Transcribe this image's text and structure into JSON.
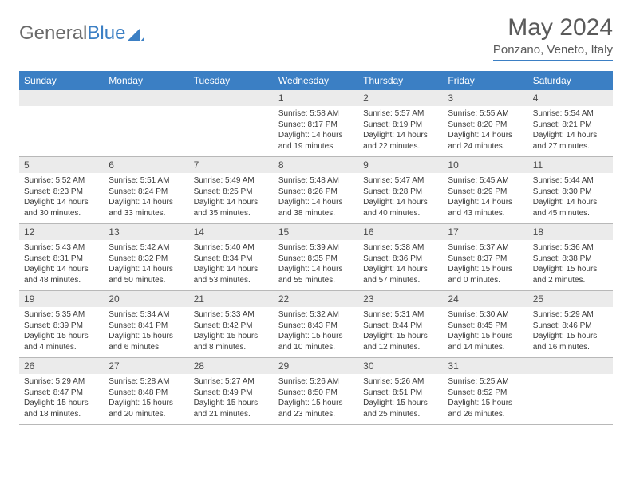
{
  "logo": {
    "text1": "General",
    "text2": "Blue"
  },
  "title": "May 2024",
  "location": "Ponzano, Veneto, Italy",
  "colors": {
    "accent": "#3b7fc4",
    "header_bg": "#3b7fc4",
    "header_text": "#ffffff",
    "daynum_bg": "#ebebeb",
    "text": "#3a3a3a",
    "title_text": "#5a5a5a",
    "border": "#b8b8b8"
  },
  "layout": {
    "columns": 7,
    "rows": 5,
    "cell_font_size": 10,
    "header_font_size": 12,
    "title_font_size": 30
  },
  "day_names": [
    "Sunday",
    "Monday",
    "Tuesday",
    "Wednesday",
    "Thursday",
    "Friday",
    "Saturday"
  ],
  "weeks": [
    [
      null,
      null,
      null,
      {
        "n": "1",
        "sr": "5:58 AM",
        "ss": "8:17 PM",
        "dl": "14 hours and 19 minutes."
      },
      {
        "n": "2",
        "sr": "5:57 AM",
        "ss": "8:19 PM",
        "dl": "14 hours and 22 minutes."
      },
      {
        "n": "3",
        "sr": "5:55 AM",
        "ss": "8:20 PM",
        "dl": "14 hours and 24 minutes."
      },
      {
        "n": "4",
        "sr": "5:54 AM",
        "ss": "8:21 PM",
        "dl": "14 hours and 27 minutes."
      }
    ],
    [
      {
        "n": "5",
        "sr": "5:52 AM",
        "ss": "8:23 PM",
        "dl": "14 hours and 30 minutes."
      },
      {
        "n": "6",
        "sr": "5:51 AM",
        "ss": "8:24 PM",
        "dl": "14 hours and 33 minutes."
      },
      {
        "n": "7",
        "sr": "5:49 AM",
        "ss": "8:25 PM",
        "dl": "14 hours and 35 minutes."
      },
      {
        "n": "8",
        "sr": "5:48 AM",
        "ss": "8:26 PM",
        "dl": "14 hours and 38 minutes."
      },
      {
        "n": "9",
        "sr": "5:47 AM",
        "ss": "8:28 PM",
        "dl": "14 hours and 40 minutes."
      },
      {
        "n": "10",
        "sr": "5:45 AM",
        "ss": "8:29 PM",
        "dl": "14 hours and 43 minutes."
      },
      {
        "n": "11",
        "sr": "5:44 AM",
        "ss": "8:30 PM",
        "dl": "14 hours and 45 minutes."
      }
    ],
    [
      {
        "n": "12",
        "sr": "5:43 AM",
        "ss": "8:31 PM",
        "dl": "14 hours and 48 minutes."
      },
      {
        "n": "13",
        "sr": "5:42 AM",
        "ss": "8:32 PM",
        "dl": "14 hours and 50 minutes."
      },
      {
        "n": "14",
        "sr": "5:40 AM",
        "ss": "8:34 PM",
        "dl": "14 hours and 53 minutes."
      },
      {
        "n": "15",
        "sr": "5:39 AM",
        "ss": "8:35 PM",
        "dl": "14 hours and 55 minutes."
      },
      {
        "n": "16",
        "sr": "5:38 AM",
        "ss": "8:36 PM",
        "dl": "14 hours and 57 minutes."
      },
      {
        "n": "17",
        "sr": "5:37 AM",
        "ss": "8:37 PM",
        "dl": "15 hours and 0 minutes."
      },
      {
        "n": "18",
        "sr": "5:36 AM",
        "ss": "8:38 PM",
        "dl": "15 hours and 2 minutes."
      }
    ],
    [
      {
        "n": "19",
        "sr": "5:35 AM",
        "ss": "8:39 PM",
        "dl": "15 hours and 4 minutes."
      },
      {
        "n": "20",
        "sr": "5:34 AM",
        "ss": "8:41 PM",
        "dl": "15 hours and 6 minutes."
      },
      {
        "n": "21",
        "sr": "5:33 AM",
        "ss": "8:42 PM",
        "dl": "15 hours and 8 minutes."
      },
      {
        "n": "22",
        "sr": "5:32 AM",
        "ss": "8:43 PM",
        "dl": "15 hours and 10 minutes."
      },
      {
        "n": "23",
        "sr": "5:31 AM",
        "ss": "8:44 PM",
        "dl": "15 hours and 12 minutes."
      },
      {
        "n": "24",
        "sr": "5:30 AM",
        "ss": "8:45 PM",
        "dl": "15 hours and 14 minutes."
      },
      {
        "n": "25",
        "sr": "5:29 AM",
        "ss": "8:46 PM",
        "dl": "15 hours and 16 minutes."
      }
    ],
    [
      {
        "n": "26",
        "sr": "5:29 AM",
        "ss": "8:47 PM",
        "dl": "15 hours and 18 minutes."
      },
      {
        "n": "27",
        "sr": "5:28 AM",
        "ss": "8:48 PM",
        "dl": "15 hours and 20 minutes."
      },
      {
        "n": "28",
        "sr": "5:27 AM",
        "ss": "8:49 PM",
        "dl": "15 hours and 21 minutes."
      },
      {
        "n": "29",
        "sr": "5:26 AM",
        "ss": "8:50 PM",
        "dl": "15 hours and 23 minutes."
      },
      {
        "n": "30",
        "sr": "5:26 AM",
        "ss": "8:51 PM",
        "dl": "15 hours and 25 minutes."
      },
      {
        "n": "31",
        "sr": "5:25 AM",
        "ss": "8:52 PM",
        "dl": "15 hours and 26 minutes."
      },
      null
    ]
  ],
  "labels": {
    "sunrise": "Sunrise:",
    "sunset": "Sunset:",
    "daylight": "Daylight:"
  }
}
